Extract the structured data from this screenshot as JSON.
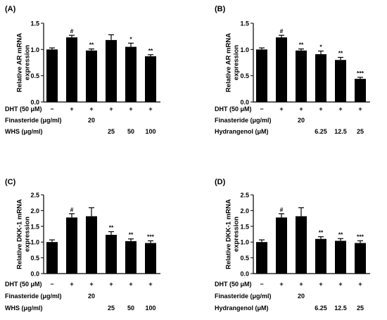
{
  "chart_data": [
    {
      "panel_label": "(A)",
      "type": "bar",
      "ylabel": "Relative AR mRNA\nexpression",
      "ylim": [
        0,
        1.5
      ],
      "yticks": [
        "0.0",
        "0.5",
        "1.0",
        "1.5"
      ],
      "values": [
        1.0,
        1.23,
        0.98,
        1.18,
        1.05,
        0.87
      ],
      "errors": [
        0.03,
        0.04,
        0.03,
        0.1,
        0.07,
        0.03
      ],
      "significance": [
        "",
        "#",
        "**",
        "",
        "*",
        "**"
      ],
      "treatment_rows": [
        {
          "label": "DHT (50 μM)",
          "cells": [
            "−",
            "+",
            "+",
            "+",
            "+",
            "+"
          ]
        },
        {
          "label": "Finasteride (μg/ml)",
          "cells": [
            "",
            "",
            "20",
            "",
            "",
            ""
          ]
        },
        {
          "label": "WHS (μg/ml)",
          "cells": [
            "",
            "",
            "",
            "25",
            "50",
            "100"
          ]
        }
      ]
    },
    {
      "panel_label": "(B)",
      "type": "bar",
      "ylabel": "Relative AR mRNA\nexpression",
      "ylim": [
        0,
        1.5
      ],
      "yticks": [
        "0.0",
        "0.5",
        "1.0",
        "1.5"
      ],
      "values": [
        1.0,
        1.23,
        0.98,
        0.91,
        0.8,
        0.44
      ],
      "errors": [
        0.03,
        0.04,
        0.03,
        0.06,
        0.05,
        0.03
      ],
      "significance": [
        "",
        "#",
        "**",
        "*",
        "**",
        "***"
      ],
      "treatment_rows": [
        {
          "label": "DHT (50 μM)",
          "cells": [
            "−",
            "+",
            "+",
            "+",
            "+",
            "+"
          ]
        },
        {
          "label": "Finasteride (μg/ml)",
          "cells": [
            "",
            "",
            "20",
            "",
            "",
            ""
          ]
        },
        {
          "label": "Hydrangenol (μM)",
          "cells": [
            "",
            "",
            "",
            "6.25",
            "12.5",
            "25"
          ]
        }
      ]
    },
    {
      "panel_label": "(C)",
      "type": "bar",
      "ylabel": "Relative DKK-1 mRNA\nexpression",
      "ylim": [
        0,
        2.5
      ],
      "yticks": [
        "0.0",
        "0.5",
        "1.0",
        "1.5",
        "2.0",
        "2.5"
      ],
      "values": [
        1.0,
        1.78,
        1.82,
        1.23,
        1.03,
        0.97
      ],
      "errors": [
        0.07,
        0.12,
        0.27,
        0.1,
        0.07,
        0.07
      ],
      "significance": [
        "",
        "#",
        "",
        "**",
        "**",
        "***"
      ],
      "treatment_rows": [
        {
          "label": "DHT (50 μM)",
          "cells": [
            "−",
            "+",
            "+",
            "+",
            "+",
            "+"
          ]
        },
        {
          "label": "Finasteride (μg/ml)",
          "cells": [
            "",
            "",
            "20",
            "",
            "",
            ""
          ]
        },
        {
          "label": "WHS (μg/ml)",
          "cells": [
            "",
            "",
            "",
            "25",
            "50",
            "100"
          ]
        }
      ]
    },
    {
      "panel_label": "(D)",
      "type": "bar",
      "ylabel": "Relative DKK-1 mRNA\nexpression",
      "ylim": [
        0,
        2.5
      ],
      "yticks": [
        "0.0",
        "0.5",
        "1.0",
        "1.5",
        "2.0",
        "2.5"
      ],
      "values": [
        1.0,
        1.78,
        1.82,
        1.1,
        1.04,
        0.97
      ],
      "errors": [
        0.07,
        0.12,
        0.27,
        0.07,
        0.07,
        0.07
      ],
      "significance": [
        "",
        "#",
        "",
        "**",
        "**",
        "***"
      ],
      "treatment_rows": [
        {
          "label": "DHT (50 μM)",
          "cells": [
            "−",
            "+",
            "+",
            "+",
            "+",
            "+"
          ]
        },
        {
          "label": "Finasteride (μg/ml)",
          "cells": [
            "",
            "",
            "20",
            "",
            "",
            ""
          ]
        },
        {
          "label": "Hydrangenol (μM)",
          "cells": [
            "",
            "",
            "",
            "6.25",
            "12.5",
            "25"
          ]
        }
      ]
    }
  ],
  "colors": {
    "bar": "#000000",
    "axis": "#000000",
    "background": "#ffffff"
  }
}
